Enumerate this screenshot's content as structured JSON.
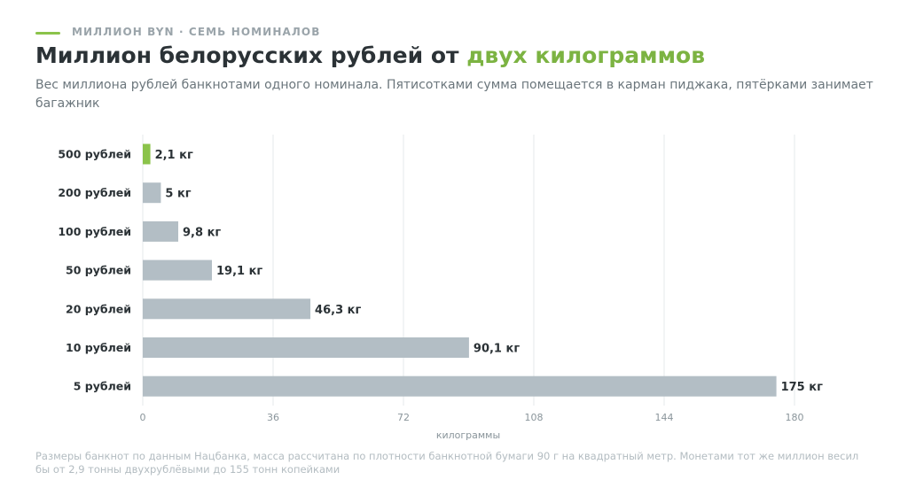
{
  "header": {
    "kicker": "МИЛЛИОН BYN · СЕМЬ НОМИНАЛОВ",
    "title_main": "Миллион белорусских рублей от ",
    "title_accent": "двух килограммов",
    "subtitle": "Вес миллиона рублей банкнотами одного номинала. Пятисотками сумма помещается в карман пиджака, пятёрками занимает багажник"
  },
  "colors": {
    "accent": "#8bc34a",
    "bar": "#b3bec5",
    "grid": "#e6e9eb",
    "text": "#2b3236",
    "muted": "#8a959b"
  },
  "chart_data": {
    "type": "bar",
    "orientation": "horizontal",
    "categories": [
      "500 рублей",
      "200 рублей",
      "100 рублей",
      "50 рублей",
      "20 рублей",
      "10 рублей",
      "5 рублей"
    ],
    "values": [
      2.1,
      5,
      9.8,
      19.1,
      46.3,
      90.1,
      175
    ],
    "value_labels": [
      "2,1 кг",
      "5 кг",
      "9,8 кг",
      "19,1 кг",
      "46,3 кг",
      "90,1 кг",
      "175 кг"
    ],
    "highlight_index": 0,
    "xlabel": "килограммы",
    "xlim": [
      0,
      180
    ],
    "xticks": [
      0,
      36,
      72,
      108,
      144,
      180
    ],
    "grid": true
  },
  "footnote": "Размеры банкнот по данным Нацбанка, масса рассчитана по плотности банкнотной бумаги 90 г на квадратный метр. Монетами тот же миллион весил бы от 2,9 тонны двухрублёвыми до 155 тонн копейками"
}
